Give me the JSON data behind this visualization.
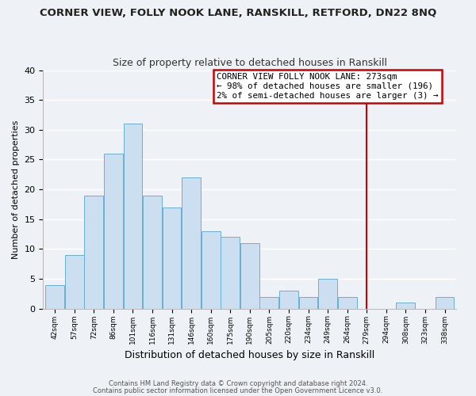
{
  "title": "CORNER VIEW, FOLLY NOOK LANE, RANSKILL, RETFORD, DN22 8NQ",
  "subtitle": "Size of property relative to detached houses in Ranskill",
  "xlabel": "Distribution of detached houses by size in Ranskill",
  "ylabel": "Number of detached properties",
  "bin_labels": [
    "42sqm",
    "57sqm",
    "72sqm",
    "86sqm",
    "101sqm",
    "116sqm",
    "131sqm",
    "146sqm",
    "160sqm",
    "175sqm",
    "190sqm",
    "205sqm",
    "220sqm",
    "234sqm",
    "249sqm",
    "264sqm",
    "279sqm",
    "294sqm",
    "308sqm",
    "323sqm",
    "338sqm"
  ],
  "bar_heights": [
    4,
    9,
    19,
    26,
    31,
    19,
    17,
    22,
    13,
    12,
    11,
    2,
    3,
    2,
    5,
    2,
    0,
    0,
    1,
    0,
    2
  ],
  "bar_color": "#ccdff0",
  "bar_edge_color": "#6aafd6",
  "vline_color": "#cc0000",
  "annotation_title": "CORNER VIEW FOLLY NOOK LANE: 273sqm",
  "annotation_line1": "← 98% of detached houses are smaller (196)",
  "annotation_line2": "2% of semi-detached houses are larger (3) →",
  "annotation_box_color": "#ffffff",
  "annotation_box_edge": "#cc0000",
  "ylim": [
    0,
    40
  ],
  "yticks": [
    0,
    5,
    10,
    15,
    20,
    25,
    30,
    35,
    40
  ],
  "background_color": "#eef2f7",
  "grid_color": "#ffffff",
  "footer_line1": "Contains HM Land Registry data © Crown copyright and database right 2024.",
  "footer_line2": "Contains public sector information licensed under the Open Government Licence v3.0."
}
